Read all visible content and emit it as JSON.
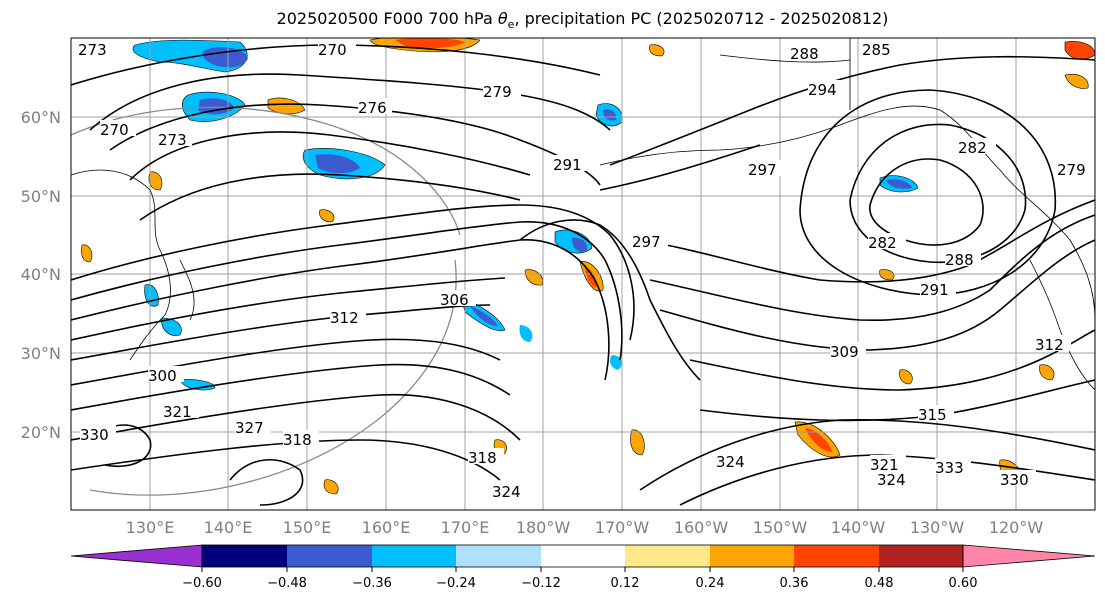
{
  "title": {
    "prefix": "2025020500 F000 700 hPa ",
    "theta": "θ",
    "sub": "e",
    "suffix": ", precipitation PC (2025020712 - 2025020812)"
  },
  "lat_labels": [
    "60°N",
    "50°N",
    "40°N",
    "30°N",
    "20°N"
  ],
  "lon_labels": [
    "130°E",
    "140°E",
    "150°E",
    "160°E",
    "170°E",
    "180°W",
    "170°W",
    "160°W",
    "150°W",
    "140°W",
    "130°W",
    "120°W"
  ],
  "contour_labels": [
    "273",
    "270",
    "270",
    "273",
    "276",
    "279",
    "288",
    "285",
    "294",
    "282",
    "291",
    "297",
    "282",
    "288",
    "291",
    "297",
    "306",
    "309",
    "312",
    "300",
    "321",
    "327",
    "318",
    "330",
    "318",
    "324",
    "324",
    "315",
    "321",
    "324",
    "333",
    "330",
    "312",
    "279"
  ],
  "colorbar": {
    "colors": [
      "#9b30d0",
      "#00007f",
      "#3a5cd0",
      "#00bfff",
      "#afe0ff",
      "#ffffff",
      "#ffe88a",
      "#ffa500",
      "#ff4500",
      "#b22222",
      "#ff85a8"
    ],
    "tick_labels": [
      "−0.60",
      "−0.48",
      "−0.36",
      "−0.24",
      "−0.12",
      "0.12",
      "0.24",
      "0.36",
      "0.48",
      "0.60"
    ]
  }
}
